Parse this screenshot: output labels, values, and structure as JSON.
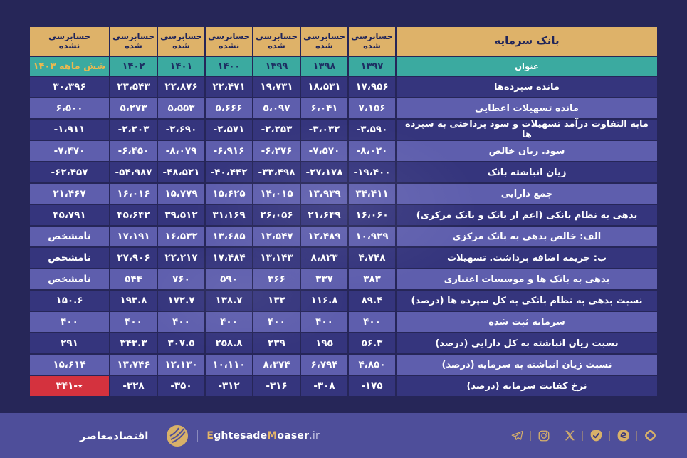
{
  "table": {
    "brand": "بانک سرمایه",
    "title_label": "عنوان",
    "columns": [
      {
        "year": "۱۳۹۷",
        "audit_line1": "حسابرسی",
        "audit_line2": "شده",
        "accent": false
      },
      {
        "year": "۱۳۹۸",
        "audit_line1": "حسابرسی",
        "audit_line2": "شده",
        "accent": false
      },
      {
        "year": "۱۳۹۹",
        "audit_line1": "حسابرسی",
        "audit_line2": "شده",
        "accent": false
      },
      {
        "year": "۱۴۰۰",
        "audit_line1": "حسابرسی",
        "audit_line2": "نشده",
        "accent": false
      },
      {
        "year": "۱۴۰۱",
        "audit_line1": "حسابرسی",
        "audit_line2": "شده",
        "accent": false
      },
      {
        "year": "۱۴۰۲",
        "audit_line1": "حسابرسی",
        "audit_line2": "شده",
        "accent": false
      },
      {
        "year": "شش ماهه ۱۴۰۳",
        "audit_line1": "حسابرسی",
        "audit_line2": "نشده",
        "accent": true
      }
    ],
    "rows": [
      {
        "label": "مانده سپرده‌ها",
        "values": [
          "۱۷،۹۵۶",
          "۱۸،۵۳۱",
          "۱۹،۷۳۱",
          "۲۲،۴۷۱",
          "۲۲،۸۷۶",
          "۲۳،۵۴۳",
          "۳۰،۳۹۶"
        ]
      },
      {
        "label": "مانده تسهیلات اعطایی",
        "values": [
          "۷،۱۵۶",
          "۶،۰۴۱",
          "۵،۰۹۷",
          "۵،۶۶۶",
          "۵،۵۵۳",
          "۵،۲۷۳",
          "۶،۵۰۰"
        ]
      },
      {
        "label": "مابه التفاوت درآمد تسهیلات و سود پرداختی به سپرده ها",
        "values": [
          "-۳،۵۹۰",
          "-۳،۰۳۲",
          "-۲،۲۵۳",
          "-۲،۵۷۱",
          "-۲،۶۹۰",
          "-۲،۲۰۳",
          "-۱،۹۱۱"
        ]
      },
      {
        "label": "سود. زیان خالص",
        "values": [
          "-۸،۰۲۰",
          "-۷،۵۷۰",
          "-۶،۲۷۶",
          "-۶،۹۱۶",
          "-۸،۰۷۹",
          "-۶،۴۵۰",
          "-۷،۴۷۰"
        ]
      },
      {
        "label": "زیان انباشته بانک",
        "values": [
          "-۱۹،۴۰۰",
          "-۲۷،۱۷۸",
          "-۳۳،۴۹۸",
          "-۴۰،۴۴۲",
          "-۴۸،۵۲۱",
          "-۵۴،۹۸۷",
          "-۶۲،۴۵۷"
        ]
      },
      {
        "label": "جمع دارایی",
        "values": [
          "۳۴،۴۱۱",
          "۱۳،۹۳۹",
          "۱۴،۰۱۵",
          "۱۵،۶۲۵",
          "۱۵،۷۷۹",
          "۱۶،۰۱۶",
          "۲۱،۴۶۷"
        ]
      },
      {
        "label": "بدهی به نظام بانکی (اعم از بانک و بانک مرکزی)",
        "values": [
          "۱۶،۰۶۰",
          "۲۱،۶۴۹",
          "۲۶،۰۵۶",
          "۳۱،۱۶۹",
          "۳۹،۵۱۲",
          "۴۵،۶۴۲",
          "۴۵،۷۹۱"
        ]
      },
      {
        "label": "الف: خالص بدهی به بانک مرکزی",
        "values": [
          "۱۰،۹۲۹",
          "۱۲،۴۸۹",
          "۱۲،۵۴۷",
          "۱۳،۶۸۵",
          "۱۶،۵۳۲",
          "۱۷،۱۹۱",
          "نامشخص"
        ]
      },
      {
        "label": "ب: جریمه اضافه برداشت. تسهیلات",
        "values": [
          "۴،۷۴۸",
          "۸،۸۲۳",
          "۱۳،۱۴۳",
          "۱۷،۴۸۴",
          "۲۲،۲۱۷",
          "۲۷،۹۰۶",
          "نامشخص"
        ]
      },
      {
        "label": "بدهی به بانک ها و موسسات اعتباری",
        "values": [
          "۳۸۳",
          "۳۳۷",
          "۳۶۶",
          "۵۹۰",
          "۷۶۰",
          "۵۴۴",
          "نامشخص"
        ]
      },
      {
        "label": "نسبت بدهی به نظام بانکی به کل سپرده ها (درصد)",
        "values": [
          "۸۹.۴",
          "۱۱۶.۸",
          "۱۳۲",
          "۱۳۸.۷",
          "۱۷۲.۷",
          "۱۹۳.۸",
          "۱۵۰.۶"
        ]
      },
      {
        "label": "سرمایه ثبت شده",
        "values": [
          "۴۰۰",
          "۴۰۰",
          "۴۰۰",
          "۴۰۰",
          "۴۰۰",
          "۴۰۰",
          "۴۰۰"
        ]
      },
      {
        "label": "نسبت زیان انباشته به کل دارایی (درصد)",
        "values": [
          "۵۶.۳",
          "۱۹۵",
          "۲۳۹",
          "۲۵۸.۸",
          "۳۰۷.۵",
          "۳۴۳.۳",
          "۲۹۱"
        ]
      },
      {
        "label": "نسبت زیان انباشته به سرمایه (درصد)",
        "values": [
          "۴،۸۵۰",
          "۶،۷۹۴",
          "۸،۳۷۴",
          "۱۰،۱۱۰",
          "۱۲،۱۳۰",
          "۱۳،۷۴۶",
          "۱۵،۶۱۴"
        ]
      },
      {
        "label": "نرخ کفایت سرمایه (درصد)",
        "values": [
          "-۱۷۵",
          "-۳۰۸",
          "-۳۱۶",
          "-۳۱۲",
          "-۳۵۰",
          "-۳۲۸",
          "٭-۳۴۱"
        ],
        "highlight_col": 6
      }
    ]
  },
  "chart_data": {
    "type": "table",
    "title": "بانک سرمایه",
    "columns": [
      "۱۳۹۷",
      "۱۳۹۸",
      "۱۳۹۹",
      "۱۴۰۰",
      "۱۴۰۱",
      "۱۴۰۲",
      "شش ماهه ۱۴۰۳"
    ],
    "audit_status": [
      "حسابرسی شده",
      "حسابرسی شده",
      "حسابرسی شده",
      "حسابرسی نشده",
      "حسابرسی شده",
      "حسابرسی شده",
      "حسابرسی نشده"
    ],
    "rows": [
      {
        "label": "مانده سپرده‌ها",
        "values": [
          17956,
          18531,
          19731,
          22471,
          22876,
          23543,
          30396
        ]
      },
      {
        "label": "مانده تسهیلات اعطایی",
        "values": [
          7156,
          6041,
          5097,
          5666,
          5553,
          5273,
          6500
        ]
      },
      {
        "label": "مابه التفاوت درآمد تسهیلات و سود پرداختی به سپرده ها",
        "values": [
          -3590,
          -3032,
          -2253,
          -2571,
          -2690,
          -2203,
          -1911
        ]
      },
      {
        "label": "سود. زیان خالص",
        "values": [
          -8020,
          -7570,
          -6276,
          -6916,
          -8079,
          -6450,
          -7470
        ]
      },
      {
        "label": "زیان انباشته بانک",
        "values": [
          -19400,
          -27178,
          -33498,
          -40442,
          -48521,
          -54987,
          -62457
        ]
      },
      {
        "label": "جمع دارایی",
        "values": [
          34411,
          13939,
          14015,
          15625,
          15779,
          16016,
          21467
        ]
      },
      {
        "label": "بدهی به نظام بانکی (اعم از بانک و بانک مرکزی)",
        "values": [
          16060,
          21649,
          26056,
          31169,
          39512,
          45642,
          45791
        ]
      },
      {
        "label": "الف: خالص بدهی به بانک مرکزی",
        "values": [
          10929,
          12489,
          12547,
          13685,
          16532,
          17191,
          "نامشخص"
        ]
      },
      {
        "label": "ب: جریمه اضافه برداشت. تسهیلات",
        "values": [
          4748,
          8823,
          13143,
          17484,
          22217,
          27906,
          "نامشخص"
        ]
      },
      {
        "label": "بدهی به بانک ها و موسسات اعتباری",
        "values": [
          383,
          337,
          366,
          590,
          760,
          544,
          "نامشخص"
        ]
      },
      {
        "label": "نسبت بدهی به نظام بانکی به کل سپرده ها (درصد)",
        "values": [
          89.4,
          116.8,
          132,
          138.7,
          172.7,
          193.8,
          150.6
        ]
      },
      {
        "label": "سرمایه ثبت شده",
        "values": [
          400,
          400,
          400,
          400,
          400,
          400,
          400
        ]
      },
      {
        "label": "نسبت زیان انباشته به کل دارایی (درصد)",
        "values": [
          56.3,
          195,
          239,
          258.8,
          307.5,
          343.3,
          291
        ]
      },
      {
        "label": "نسبت زیان انباشته به سرمایه (درصد)",
        "values": [
          4850,
          6794,
          8374,
          10110,
          12130,
          13746,
          15614
        ]
      },
      {
        "label": "نرخ کفایت سرمایه (درصد)",
        "values": [
          -175,
          -308,
          -316,
          -312,
          -350,
          -328,
          -341
        ]
      }
    ]
  },
  "footer": {
    "brand_fa": "اقتصادمعاصر",
    "site_gold1": "E",
    "site_white1": "ghtesade",
    "site_gold2": "M",
    "site_white2": "oaser",
    "site_tld": ".ir",
    "social_icons": [
      "telegram-icon",
      "instagram-icon",
      "x-twitter-icon",
      "bale-icon",
      "eitaa-icon",
      "rubika-icon"
    ]
  },
  "colors": {
    "background": "#262658",
    "header_gold": "#deb269",
    "header_teal": "#3baaa0",
    "row_dark": "#35357d",
    "row_light": "#5e5ead",
    "highlight_red": "#d4323e",
    "accent_gold_text": "#eeb94e",
    "footer_bar": "#4e4e9a",
    "icon_gold": "#d8b169"
  }
}
